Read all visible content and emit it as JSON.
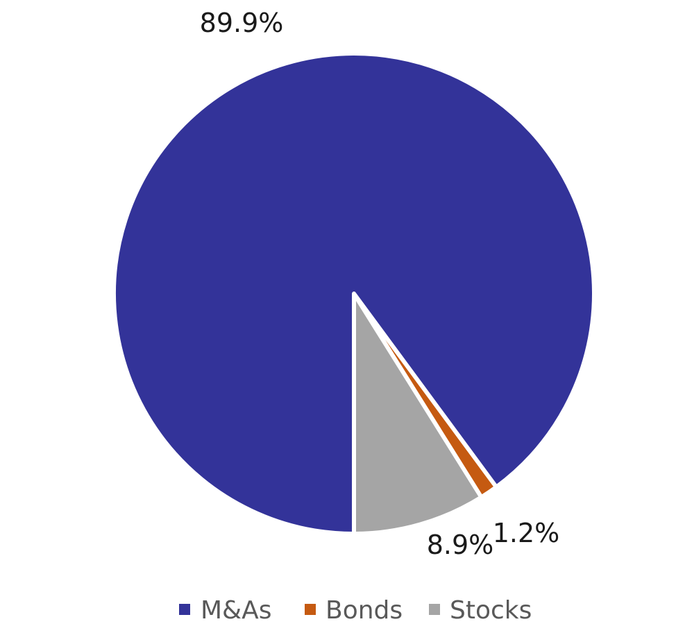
{
  "chart_data": {
    "type": "pie",
    "categories": [
      "M&As",
      "Bonds",
      "Stocks"
    ],
    "values": [
      89.9,
      1.2,
      8.9
    ],
    "labels": [
      "89.9%",
      "1.2%",
      "8.9%"
    ],
    "colors": [
      "#333399",
      "#C55A11",
      "#A5A5A5"
    ],
    "legend": {
      "position": "bottom",
      "entries": [
        "M&As",
        "Bonds",
        "Stocks"
      ]
    }
  }
}
